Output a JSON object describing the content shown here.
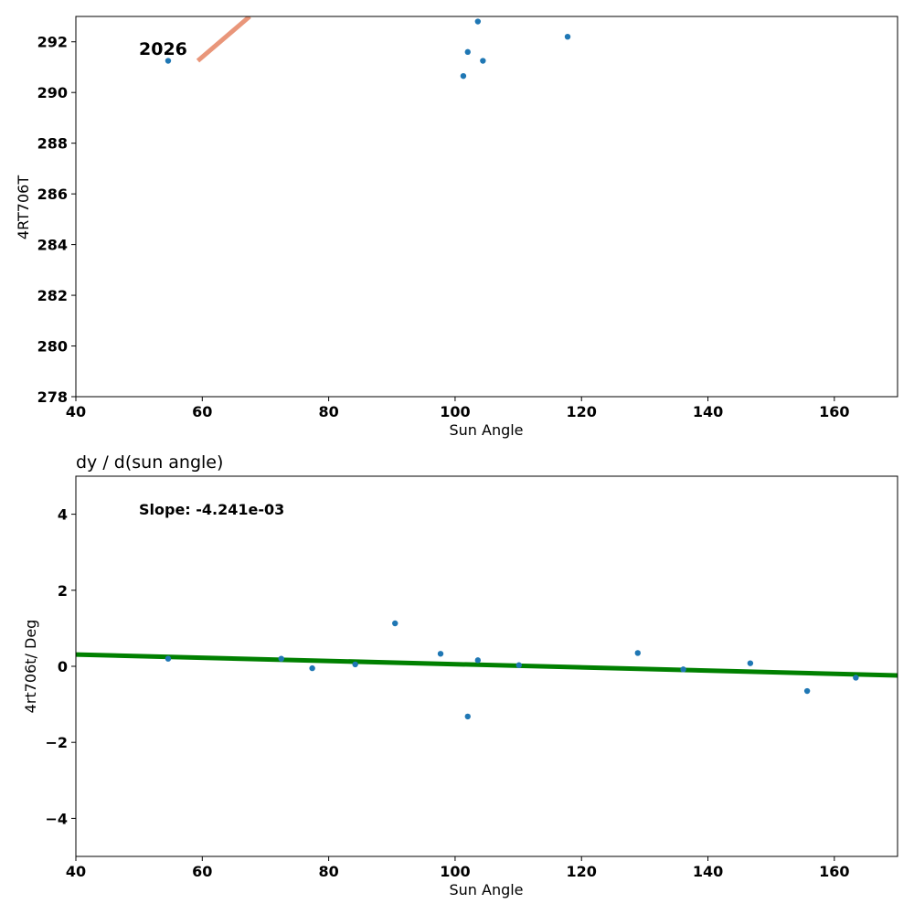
{
  "chart_data": [
    {
      "type": "scatter",
      "title": "",
      "xlabel": "Sun Angle",
      "ylabel": "4RT706T",
      "xlim": [
        40,
        170
      ],
      "ylim": [
        278,
        293
      ],
      "xticks": [
        40,
        60,
        80,
        100,
        120,
        140,
        160
      ],
      "yticks": [
        278,
        280,
        282,
        284,
        286,
        288,
        290,
        292
      ],
      "annotation": "2026",
      "series": [
        {
          "name": "points",
          "color": "#1f77b4",
          "points": [
            [
              54.6,
              291.25
            ],
            [
              101.3,
              290.65
            ],
            [
              102.0,
              291.6
            ],
            [
              103.6,
              292.8
            ],
            [
              104.4,
              291.25
            ],
            [
              117.8,
              292.2
            ]
          ]
        },
        {
          "name": "trend",
          "kind": "line",
          "color": "#e9967a",
          "points": [
            [
              59.3,
              291.25
            ],
            [
              67.5,
              293.0
            ]
          ]
        }
      ]
    },
    {
      "type": "scatter",
      "title": "dy / d(sun angle)",
      "xlabel": "Sun Angle",
      "ylabel": "4rt706t/ Deg",
      "xlim": [
        40,
        170
      ],
      "ylim": [
        -5,
        5
      ],
      "xticks": [
        40,
        60,
        80,
        100,
        120,
        140,
        160
      ],
      "yticks": [
        -4,
        -2,
        0,
        2,
        4
      ],
      "ytick_labels": [
        "−4",
        "−2",
        "0",
        "2",
        "4"
      ],
      "annotation": "Slope: -4.241e-03",
      "series": [
        {
          "name": "points",
          "color": "#1f77b4",
          "points": [
            [
              54.6,
              0.2
            ],
            [
              72.5,
              0.2
            ],
            [
              77.4,
              -0.05
            ],
            [
              84.2,
              0.05
            ],
            [
              90.5,
              1.13
            ],
            [
              97.7,
              0.33
            ],
            [
              102.0,
              -1.32
            ],
            [
              103.6,
              0.16
            ],
            [
              110.1,
              0.03
            ],
            [
              128.9,
              0.35
            ],
            [
              136.1,
              -0.08
            ],
            [
              146.7,
              0.08
            ],
            [
              155.7,
              -0.65
            ],
            [
              163.4,
              -0.3
            ]
          ]
        },
        {
          "name": "fit",
          "kind": "line",
          "color": "#008000",
          "points": [
            [
              40,
              0.31
            ],
            [
              170,
              -0.24
            ]
          ]
        }
      ]
    }
  ]
}
